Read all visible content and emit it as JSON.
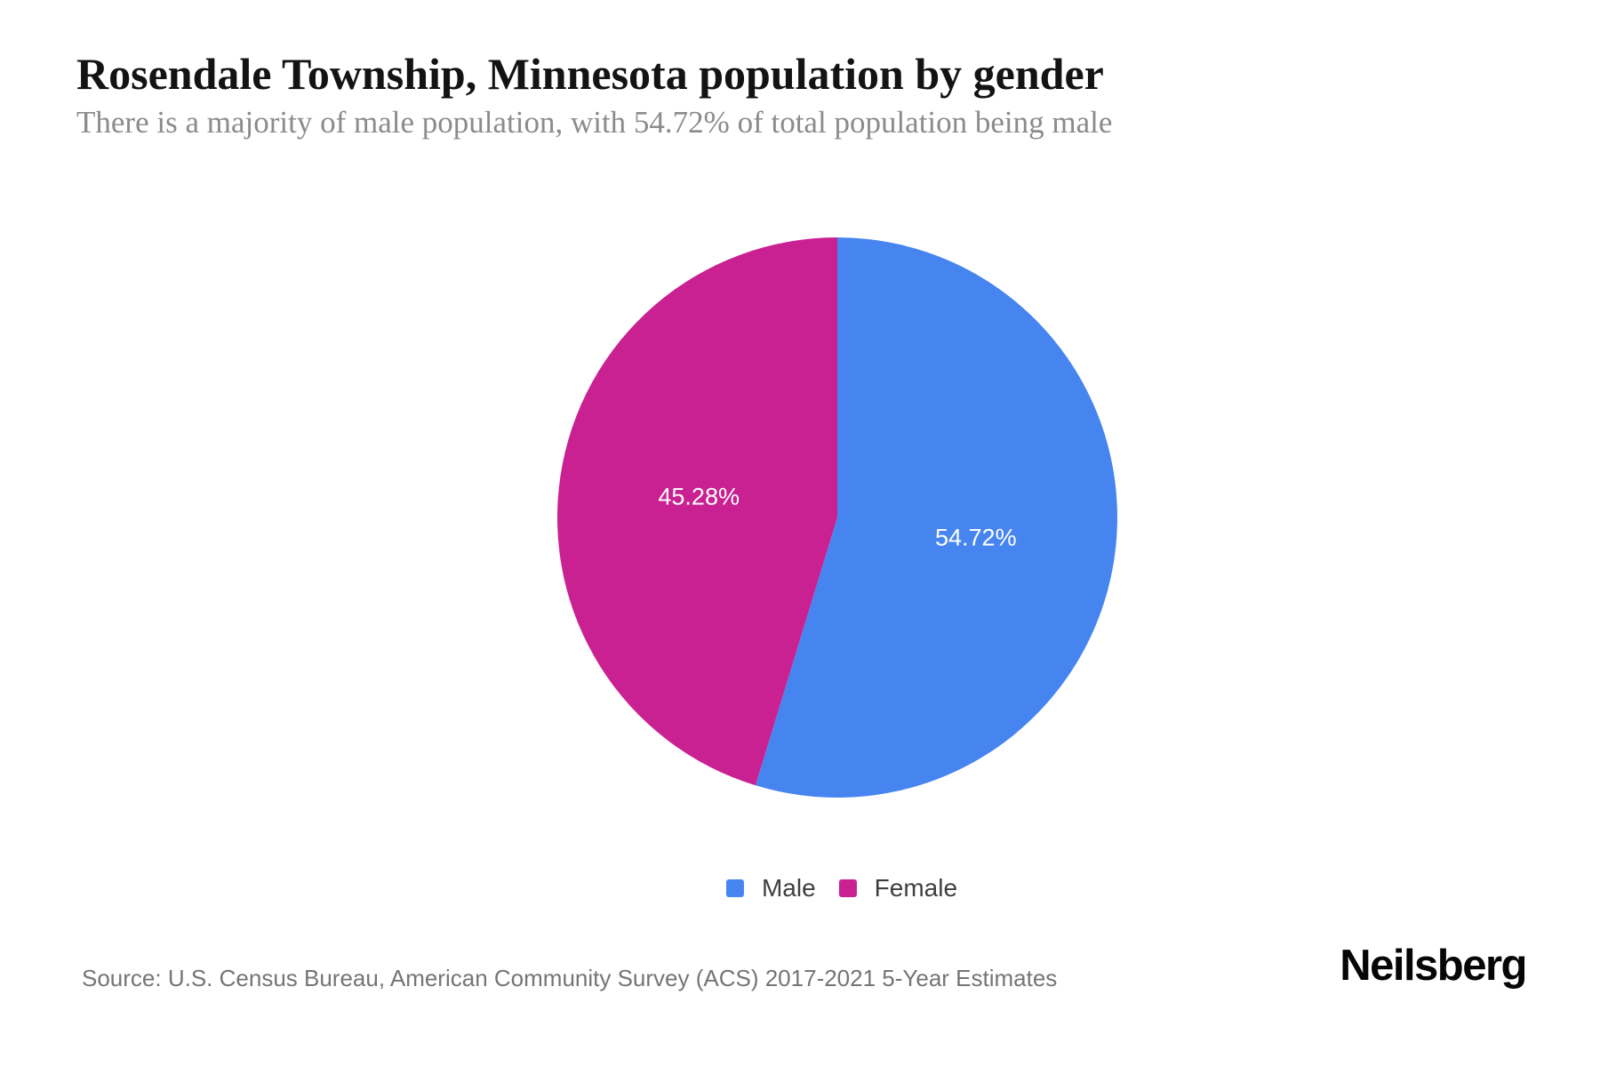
{
  "header": {
    "title": "Rosendale Township, Minnesota population by gender",
    "subtitle": "There is a majority of male population, with 54.72% of total population being male"
  },
  "chart_data": {
    "type": "pie",
    "title": "Rosendale Township, Minnesota population by gender",
    "start_angle_deg": 0,
    "direction": "clockwise",
    "legend_position": "bottom",
    "slices": [
      {
        "label": "Male",
        "value_pct": 54.72,
        "display": "54.72%",
        "color": "#4685F0"
      },
      {
        "label": "Female",
        "value_pct": 45.28,
        "display": "45.28%",
        "color": "#C92191"
      }
    ]
  },
  "legend": {
    "items": [
      {
        "label": "Male",
        "color": "#4685F0"
      },
      {
        "label": "Female",
        "color": "#C92191"
      }
    ]
  },
  "footer": {
    "source": "Source: U.S. Census Bureau, American Community Survey (ACS) 2017-2021 5-Year Estimates",
    "brand": "Neilsberg"
  }
}
